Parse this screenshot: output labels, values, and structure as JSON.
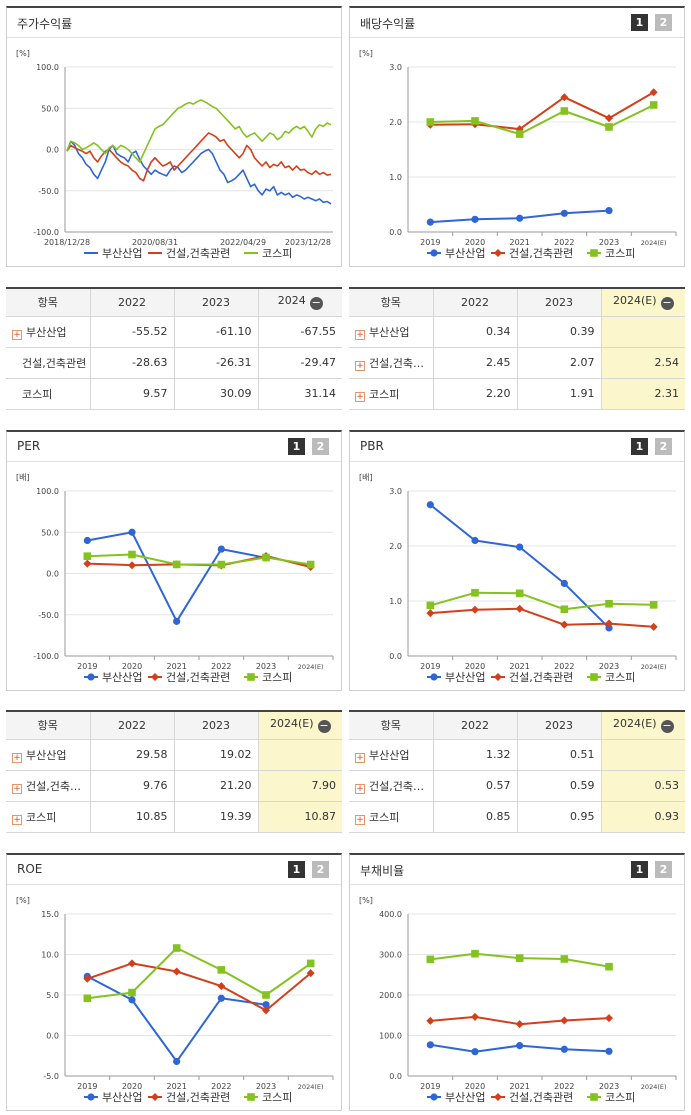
{
  "panels": {
    "stock_return": {
      "title": "주가수익률"
    },
    "dividend": {
      "title": "배당수익률",
      "page1": "1",
      "page2": "2"
    },
    "per": {
      "title": "PER",
      "page1": "1",
      "page2": "2"
    },
    "pbr": {
      "title": "PBR",
      "page1": "1",
      "page2": "2"
    },
    "roe": {
      "title": "ROE",
      "page1": "1",
      "page2": "2"
    },
    "debt": {
      "title": "부채비율",
      "page1": "1",
      "page2": "2"
    }
  },
  "colors": {
    "busan": "#2f66d6",
    "construction": "#d33f1a",
    "kospi": "#84c21f",
    "highlight": "#fcf6cc"
  },
  "tables": {
    "stock_return": {
      "headers": [
        "항목",
        "2022",
        "2023",
        "2024"
      ],
      "rows": [
        {
          "name": "부산산업",
          "expand": true,
          "values": [
            "-55.52",
            "-61.10",
            "-67.55"
          ]
        },
        {
          "name": "건설,건축관련",
          "expand": false,
          "values": [
            "-28.63",
            "-26.31",
            "-29.47"
          ]
        },
        {
          "name": "코스피",
          "expand": false,
          "values": [
            "9.57",
            "30.09",
            "31.14"
          ]
        }
      ]
    },
    "dividend": {
      "headers": [
        "항목",
        "2022",
        "2023",
        "2024(E)"
      ],
      "rows": [
        {
          "name": "부산산업",
          "expand": true,
          "values": [
            "0.34",
            "0.39",
            ""
          ]
        },
        {
          "name": "건설,건축관련",
          "expand": true,
          "values": [
            "2.45",
            "2.07",
            "2.54"
          ]
        },
        {
          "name": "코스피",
          "expand": true,
          "values": [
            "2.20",
            "1.91",
            "2.31"
          ]
        }
      ]
    },
    "per": {
      "headers": [
        "항목",
        "2022",
        "2023",
        "2024(E)"
      ],
      "rows": [
        {
          "name": "부산산업",
          "expand": true,
          "values": [
            "29.58",
            "19.02",
            ""
          ]
        },
        {
          "name": "건설,건축관련",
          "expand": true,
          "values": [
            "9.76",
            "21.20",
            "7.90"
          ]
        },
        {
          "name": "코스피",
          "expand": true,
          "values": [
            "10.85",
            "19.39",
            "10.87"
          ]
        }
      ]
    },
    "pbr": {
      "headers": [
        "항목",
        "2022",
        "2023",
        "2024(E)"
      ],
      "rows": [
        {
          "name": "부산산업",
          "expand": true,
          "values": [
            "1.32",
            "0.51",
            ""
          ]
        },
        {
          "name": "건설,건축관련",
          "expand": true,
          "values": [
            "0.57",
            "0.59",
            "0.53"
          ]
        },
        {
          "name": "코스피",
          "expand": true,
          "values": [
            "0.85",
            "0.95",
            "0.93"
          ]
        }
      ]
    }
  },
  "chart_data": [
    {
      "id": "stock_return",
      "type": "line",
      "unit": "[%]",
      "ylim": [
        -100,
        100
      ],
      "yticks": [
        "100.0",
        "50.0",
        "0.0",
        "-50.0",
        "-100.0"
      ],
      "x_tick_labels": [
        "2018/12/28",
        "2020/08/31",
        "2022/04/29",
        "2023/12/28"
      ],
      "legend": [
        "부산산업",
        "건설,건축관련",
        "코스피"
      ],
      "series": [
        {
          "name": "부산산업",
          "values": [
            -2,
            10,
            5,
            -5,
            -10,
            -18,
            -22,
            -30,
            -35,
            -25,
            -15,
            0,
            5,
            -5,
            -8,
            -10,
            -15,
            -5,
            -2,
            -12,
            -20,
            -25,
            -30,
            -25,
            -28,
            -30,
            -32,
            -25,
            -20,
            -22,
            -28,
            -25,
            -20,
            -15,
            -10,
            -5,
            -2,
            0,
            -5,
            -15,
            -25,
            -30,
            -40,
            -38,
            -35,
            -30,
            -25,
            -35,
            -45,
            -42,
            -50,
            -55,
            -48,
            -50,
            -45,
            -55,
            -52,
            -55,
            -53,
            -58,
            -55,
            -57,
            -60,
            -58,
            -60,
            -62,
            -60,
            -64,
            -63,
            -66
          ]
        },
        {
          "name": "건설,건축관련",
          "values": [
            -2,
            5,
            2,
            0,
            -2,
            -5,
            -2,
            -10,
            -15,
            -8,
            -2,
            0,
            -5,
            -10,
            -15,
            -18,
            -20,
            -25,
            -28,
            -35,
            -38,
            -25,
            -15,
            -10,
            -15,
            -20,
            -18,
            -15,
            -25,
            -20,
            -15,
            -10,
            -5,
            0,
            5,
            10,
            15,
            20,
            18,
            15,
            10,
            12,
            5,
            0,
            -5,
            -10,
            -5,
            5,
            0,
            -10,
            -15,
            -20,
            -15,
            -22,
            -18,
            -20,
            -15,
            -22,
            -20,
            -25,
            -20,
            -25,
            -24,
            -28,
            -30,
            -26,
            -30,
            -28,
            -31,
            -30
          ]
        },
        {
          "name": "코스피",
          "values": [
            -2,
            10,
            8,
            5,
            0,
            2,
            5,
            8,
            5,
            0,
            -5,
            2,
            5,
            0,
            5,
            3,
            0,
            -5,
            -10,
            -15,
            -5,
            5,
            15,
            25,
            28,
            30,
            35,
            40,
            45,
            50,
            52,
            55,
            57,
            55,
            58,
            60,
            58,
            55,
            52,
            50,
            45,
            40,
            35,
            30,
            25,
            28,
            20,
            15,
            18,
            20,
            15,
            10,
            15,
            20,
            18,
            12,
            15,
            22,
            20,
            25,
            28,
            25,
            28,
            22,
            15,
            25,
            30,
            28,
            32,
            30
          ]
        }
      ]
    },
    {
      "id": "dividend",
      "type": "line",
      "unit": "[%]",
      "ylim": [
        0,
        3
      ],
      "yticks": [
        "3.0",
        "2.0",
        "1.0",
        "0.0"
      ],
      "categories": [
        "2019",
        "2020",
        "2021",
        "2022",
        "2023",
        "2024(E)"
      ],
      "legend": [
        "부산산업",
        "건설,건축관련",
        "코스피"
      ],
      "series": [
        {
          "name": "부산산업",
          "values": [
            0.18,
            0.23,
            0.25,
            0.34,
            0.39,
            null
          ]
        },
        {
          "name": "건설,건축관련",
          "values": [
            1.95,
            1.96,
            1.87,
            2.45,
            2.07,
            2.54
          ]
        },
        {
          "name": "코스피",
          "values": [
            2.0,
            2.02,
            1.78,
            2.2,
            1.91,
            2.31
          ]
        }
      ]
    },
    {
      "id": "per",
      "type": "line",
      "unit": "[배]",
      "ylim": [
        -100,
        100
      ],
      "yticks": [
        "100.0",
        "50.0",
        "0.0",
        "-50.0",
        "-100.0"
      ],
      "categories": [
        "2019",
        "2020",
        "2021",
        "2022",
        "2023",
        "2024(E)"
      ],
      "legend": [
        "부산산업",
        "건설,건축관련",
        "코스피"
      ],
      "series": [
        {
          "name": "부산산업",
          "values": [
            40,
            50,
            -58,
            29.58,
            19.02,
            null
          ]
        },
        {
          "name": "건설,건축관련",
          "values": [
            12,
            10,
            11,
            9.76,
            21.2,
            7.9
          ]
        },
        {
          "name": "코스피",
          "values": [
            21,
            23,
            11,
            10.85,
            19.39,
            10.87
          ]
        }
      ]
    },
    {
      "id": "pbr",
      "type": "line",
      "unit": "[배]",
      "ylim": [
        0,
        3
      ],
      "yticks": [
        "3.0",
        "2.0",
        "1.0",
        "0.0"
      ],
      "categories": [
        "2019",
        "2020",
        "2021",
        "2022",
        "2023",
        "2024(E)"
      ],
      "legend": [
        "부산산업",
        "건설,건축관련",
        "코스피"
      ],
      "series": [
        {
          "name": "부산산업",
          "values": [
            2.75,
            2.1,
            1.98,
            1.32,
            0.51,
            null
          ]
        },
        {
          "name": "건설,건축관련",
          "values": [
            0.78,
            0.84,
            0.86,
            0.57,
            0.59,
            0.53
          ]
        },
        {
          "name": "코스피",
          "values": [
            0.92,
            1.15,
            1.14,
            0.85,
            0.95,
            0.93
          ]
        }
      ]
    },
    {
      "id": "roe",
      "type": "line",
      "unit": "[%]",
      "ylim": [
        -5,
        15
      ],
      "yticks": [
        "15.0",
        "10.0",
        "5.0",
        "0.0",
        "-5.0"
      ],
      "categories": [
        "2019",
        "2020",
        "2021",
        "2022",
        "2023",
        "2024(E)"
      ],
      "legend": [
        "부산산업",
        "건설,건축관련",
        "코스피"
      ],
      "series": [
        {
          "name": "부산산업",
          "values": [
            7.3,
            4.4,
            -3.2,
            4.6,
            3.8,
            null
          ]
        },
        {
          "name": "건설,건축관련",
          "values": [
            7.0,
            8.9,
            7.9,
            6.1,
            3.1,
            7.7
          ]
        },
        {
          "name": "코스피",
          "values": [
            4.6,
            5.3,
            10.8,
            8.1,
            5.0,
            8.9
          ]
        }
      ]
    },
    {
      "id": "debt",
      "type": "line",
      "unit": "[%]",
      "ylim": [
        0,
        400
      ],
      "yticks": [
        "400.0",
        "300.0",
        "200.0",
        "100.0",
        "0.0"
      ],
      "categories": [
        "2019",
        "2020",
        "2021",
        "2022",
        "2023",
        "2024(E)"
      ],
      "legend": [
        "부산산업",
        "건설,건축관련",
        "코스피"
      ],
      "series": [
        {
          "name": "부산산업",
          "values": [
            77,
            60,
            75,
            66,
            61,
            null
          ]
        },
        {
          "name": "건설,건축관련",
          "values": [
            136,
            146,
            128,
            137,
            143,
            null
          ]
        },
        {
          "name": "코스피",
          "values": [
            288,
            302,
            291,
            289,
            270,
            null
          ]
        }
      ]
    }
  ]
}
